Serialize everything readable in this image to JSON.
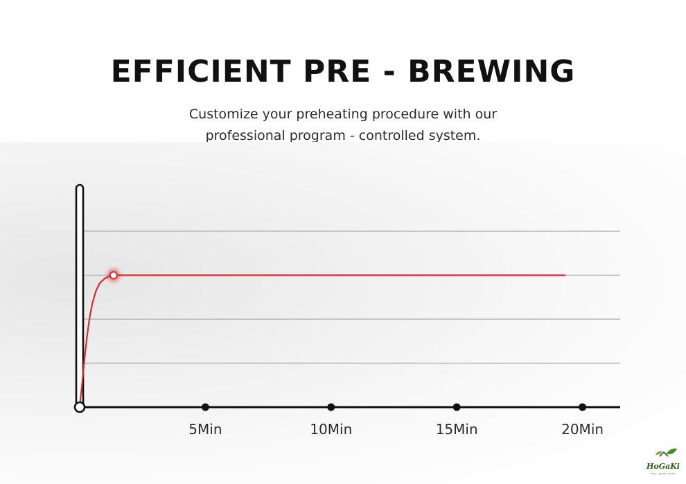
{
  "header": {
    "title": "EFFICIENT PRE - BREWING",
    "subtitle_line1": "Customize your preheating procedure with our",
    "subtitle_line2": "professional program - controlled system."
  },
  "logo": {
    "name": "HoGaKi",
    "tagline": "Home · garden · kitchen"
  },
  "colors": {
    "line": "#d62b2b",
    "axis": "#111111",
    "grid": "#b4b4b4",
    "tick_label": "#2b2b2b"
  },
  "chart_data": {
    "type": "line",
    "title": "",
    "xlabel": "",
    "ylabel": "",
    "x_ticks": [
      5,
      10,
      15,
      20
    ],
    "x_tick_labels": [
      "5Min",
      "10Min",
      "15Min",
      "20Min"
    ],
    "xlim": [
      0,
      21.5
    ],
    "ylim": [
      0,
      4
    ],
    "grid": true,
    "grid_y": [
      1,
      2,
      3,
      4
    ],
    "series": [
      {
        "x": [
          0,
          0.1,
          0.2,
          0.3,
          0.4,
          0.5,
          0.65,
          0.8,
          1.0,
          1.2,
          1.35,
          2,
          5,
          10,
          15,
          19.3
        ],
        "y": [
          0,
          0.55,
          1.15,
          1.65,
          2.05,
          2.35,
          2.65,
          2.82,
          2.93,
          2.98,
          3.0,
          3.0,
          3.0,
          3.0,
          3.0,
          3.0
        ]
      }
    ],
    "markers": [
      {
        "x": 0,
        "y": 0
      },
      {
        "x": 1.35,
        "y": 3.0
      }
    ]
  }
}
